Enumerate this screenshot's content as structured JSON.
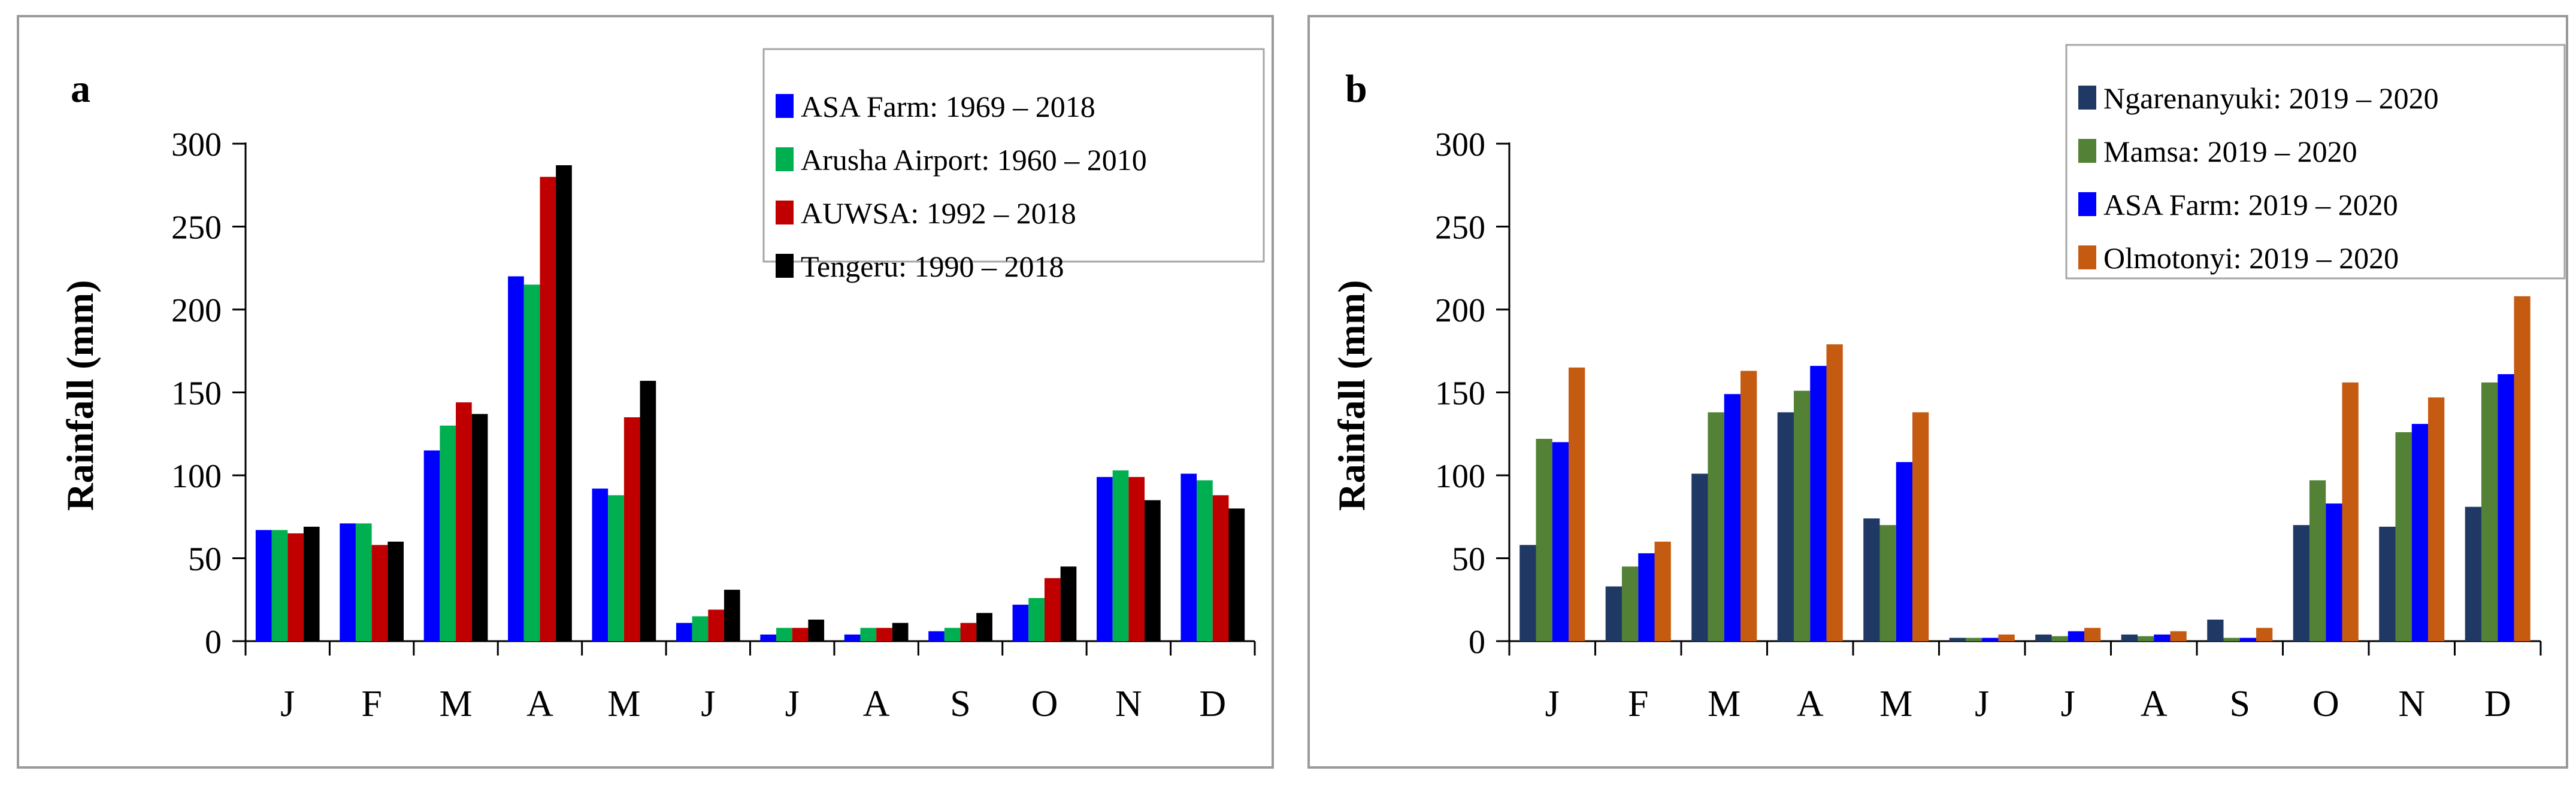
{
  "chart_data": [
    {
      "type": "bar",
      "panel_label": "a",
      "categories": [
        "J",
        "F",
        "M",
        "A",
        "M",
        "J",
        "J",
        "A",
        "S",
        "O",
        "N",
        "D"
      ],
      "ylabel": "Rainfall (mm)",
      "xlabel": "",
      "ylim": [
        0,
        300
      ],
      "yticks": [
        "0",
        "50",
        "100",
        "150",
        "200",
        "250",
        "300"
      ],
      "legend_position": "top-right",
      "series": [
        {
          "name": "ASA Farm: 1969 – 2018",
          "color": "#0000ff",
          "values": [
            67,
            71,
            115,
            220,
            92,
            11,
            4,
            4,
            6,
            22,
            99,
            101
          ]
        },
        {
          "name": "Arusha Airport: 1960 – 2010",
          "color": "#00b050",
          "values": [
            67,
            71,
            130,
            215,
            88,
            15,
            8,
            8,
            8,
            26,
            103,
            97
          ]
        },
        {
          "name": "AUWSA: 1992 – 2018",
          "color": "#c00000",
          "values": [
            65,
            58,
            144,
            280,
            135,
            19,
            8,
            8,
            11,
            38,
            99,
            88
          ]
        },
        {
          "name": "Tengeru: 1990 – 2018",
          "color": "#000000",
          "values": [
            69,
            60,
            137,
            287,
            157,
            31,
            13,
            11,
            17,
            45,
            85,
            80
          ]
        }
      ]
    },
    {
      "type": "bar",
      "panel_label": "b",
      "categories": [
        "J",
        "F",
        "M",
        "A",
        "M",
        "J",
        "J",
        "A",
        "S",
        "O",
        "N",
        "D"
      ],
      "ylabel": "Rainfall (mm)",
      "xlabel": "",
      "ylim": [
        0,
        300
      ],
      "yticks": [
        "0",
        "50",
        "100",
        "150",
        "200",
        "250",
        "300"
      ],
      "legend_position": "top-right",
      "series": [
        {
          "name": "Ngarenanyuki: 2019 – 2020",
          "color": "#1f3864",
          "values": [
            58,
            33,
            101,
            138,
            74,
            2,
            4,
            4,
            13,
            70,
            69,
            81
          ]
        },
        {
          "name": "Mamsa: 2019 – 2020",
          "color": "#538135",
          "values": [
            122,
            45,
            138,
            151,
            70,
            2,
            3,
            3,
            2,
            97,
            126,
            156
          ]
        },
        {
          "name": "ASA Farm: 2019 – 2020",
          "color": "#0000ff",
          "values": [
            120,
            53,
            149,
            166,
            108,
            2,
            6,
            4,
            2,
            83,
            131,
            161
          ]
        },
        {
          "name": "Olmotonyi: 2019 – 2020",
          "color": "#c55a11",
          "values": [
            165,
            60,
            163,
            179,
            138,
            4,
            8,
            6,
            8,
            156,
            147,
            208
          ]
        }
      ]
    }
  ]
}
